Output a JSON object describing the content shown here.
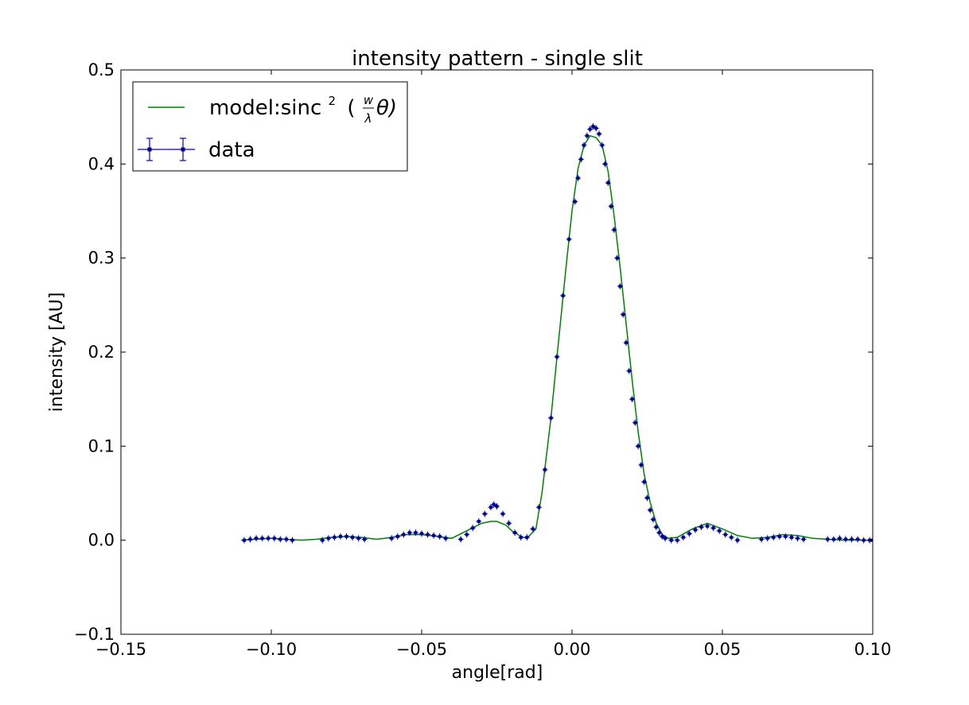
{
  "chart_data": {
    "type": "scatter",
    "title": "intensity pattern - single slit",
    "xlabel": "angle[rad]",
    "ylabel": "intensity [AU]",
    "xlim": [
      -0.15,
      0.1
    ],
    "ylim": [
      -0.1,
      0.5
    ],
    "grid": false,
    "legend_position": "top-left",
    "x_ticks": [
      -0.15,
      -0.1,
      -0.05,
      0.0,
      0.05,
      0.1
    ],
    "x_tick_labels": [
      "−0.15",
      "−0.10",
      "−0.05",
      "0.00",
      "0.05",
      "0.10"
    ],
    "y_ticks": [
      -0.1,
      0.0,
      0.1,
      0.2,
      0.3,
      0.4,
      0.5
    ],
    "y_tick_labels": [
      "−0.1",
      "0.0",
      "0.1",
      "0.2",
      "0.3",
      "0.4",
      "0.5"
    ],
    "legend": {
      "model_prefix": "model:sinc",
      "model_exponent": "2",
      "model_open": "(",
      "model_numerator": "w",
      "model_denominator": "λ",
      "model_var": "θ)",
      "data_label": "data"
    },
    "series": [
      {
        "name": "model:sinc^2 (w/λ θ)",
        "kind": "line",
        "color": "#008000",
        "x": [
          -0.11,
          -0.105,
          -0.1,
          -0.095,
          -0.09,
          -0.085,
          -0.08,
          -0.075,
          -0.07,
          -0.065,
          -0.06,
          -0.055,
          -0.05,
          -0.045,
          -0.04,
          -0.035,
          -0.03,
          -0.027,
          -0.025,
          -0.022,
          -0.02,
          -0.017,
          -0.015,
          -0.012,
          -0.01,
          -0.007,
          -0.005,
          -0.002,
          0.0,
          0.002,
          0.004,
          0.006,
          0.008,
          0.01,
          0.012,
          0.014,
          0.016,
          0.018,
          0.02,
          0.022,
          0.024,
          0.026,
          0.028,
          0.03,
          0.032,
          0.035,
          0.04,
          0.045,
          0.05,
          0.055,
          0.06,
          0.065,
          0.07,
          0.075,
          0.08,
          0.085,
          0.09,
          0.095,
          0.1
        ],
        "y": [
          0.0,
          0.001,
          0.002,
          0.001,
          0.0,
          0.001,
          0.003,
          0.004,
          0.003,
          0.001,
          0.003,
          0.006,
          0.006,
          0.004,
          0.002,
          0.01,
          0.018,
          0.02,
          0.02,
          0.016,
          0.01,
          0.004,
          0.002,
          0.012,
          0.05,
          0.13,
          0.195,
          0.29,
          0.35,
          0.395,
          0.42,
          0.43,
          0.428,
          0.42,
          0.392,
          0.345,
          0.29,
          0.23,
          0.17,
          0.115,
          0.07,
          0.04,
          0.018,
          0.006,
          0.002,
          0.003,
          0.012,
          0.018,
          0.012,
          0.005,
          0.002,
          0.003,
          0.006,
          0.005,
          0.002,
          0.001,
          0.0,
          0.0,
          0.0
        ]
      },
      {
        "name": "data",
        "kind": "errorbar-points",
        "color": "#00008b",
        "segments": [
          {
            "x": [
              -0.109,
              -0.107,
              -0.105,
              -0.103,
              -0.101,
              -0.099,
              -0.097,
              -0.095,
              -0.093
            ],
            "y": [
              0.0,
              0.001,
              0.002,
              0.002,
              0.002,
              0.002,
              0.001,
              0.001,
              0.0
            ]
          },
          {
            "x": [
              -0.083,
              -0.081,
              -0.079,
              -0.077,
              -0.075,
              -0.073,
              -0.071,
              -0.069
            ],
            "y": [
              0.0,
              0.002,
              0.003,
              0.004,
              0.004,
              0.003,
              0.002,
              0.001
            ]
          },
          {
            "x": [
              -0.06,
              -0.058,
              -0.056,
              -0.054,
              -0.052,
              -0.05,
              -0.048,
              -0.046,
              -0.044,
              -0.042
            ],
            "y": [
              0.002,
              0.004,
              0.006,
              0.008,
              0.008,
              0.007,
              0.006,
              0.005,
              0.004,
              0.002
            ]
          },
          {
            "x": [
              -0.037,
              -0.035,
              -0.033,
              -0.031,
              -0.029,
              -0.027,
              -0.026,
              -0.025,
              -0.023,
              -0.021,
              -0.019,
              -0.017,
              -0.015,
              -0.013,
              -0.011,
              -0.009,
              -0.007,
              -0.005,
              -0.003,
              -0.001,
              0.001,
              0.002,
              0.003,
              0.004,
              0.005,
              0.006,
              0.007,
              0.008,
              0.009,
              0.01,
              0.011,
              0.012,
              0.013,
              0.014,
              0.015,
              0.016,
              0.017,
              0.018,
              0.019,
              0.02,
              0.021,
              0.022,
              0.023,
              0.024,
              0.025,
              0.026,
              0.027,
              0.028,
              0.029,
              0.03,
              0.031,
              0.033,
              0.035
            ],
            "y": [
              0.001,
              0.006,
              0.013,
              0.02,
              0.028,
              0.035,
              0.038,
              0.036,
              0.028,
              0.018,
              0.008,
              0.003,
              0.003,
              0.012,
              0.035,
              0.075,
              0.13,
              0.195,
              0.26,
              0.32,
              0.36,
              0.385,
              0.405,
              0.42,
              0.43,
              0.437,
              0.44,
              0.438,
              0.432,
              0.42,
              0.4,
              0.38,
              0.355,
              0.33,
              0.3,
              0.27,
              0.24,
              0.21,
              0.18,
              0.15,
              0.125,
              0.1,
              0.08,
              0.062,
              0.045,
              0.032,
              0.022,
              0.014,
              0.008,
              0.004,
              0.002,
              0.0,
              0.0
            ]
          },
          {
            "x": [
              0.037,
              0.039,
              0.041,
              0.043,
              0.045,
              0.047,
              0.049,
              0.051,
              0.053,
              0.055
            ],
            "y": [
              0.003,
              0.007,
              0.011,
              0.014,
              0.015,
              0.013,
              0.01,
              0.006,
              0.003,
              0.0
            ]
          },
          {
            "x": [
              0.063,
              0.065,
              0.067,
              0.069,
              0.071,
              0.073,
              0.075,
              0.077
            ],
            "y": [
              0.001,
              0.002,
              0.003,
              0.004,
              0.004,
              0.003,
              0.002,
              0.001
            ]
          },
          {
            "x": [
              0.085,
              0.087,
              0.089,
              0.091,
              0.093,
              0.095,
              0.097,
              0.099,
              0.1
            ],
            "y": [
              0.001,
              0.001,
              0.002,
              0.001,
              0.001,
              0.001,
              0.0,
              0.0,
              0.0
            ]
          }
        ]
      }
    ]
  }
}
